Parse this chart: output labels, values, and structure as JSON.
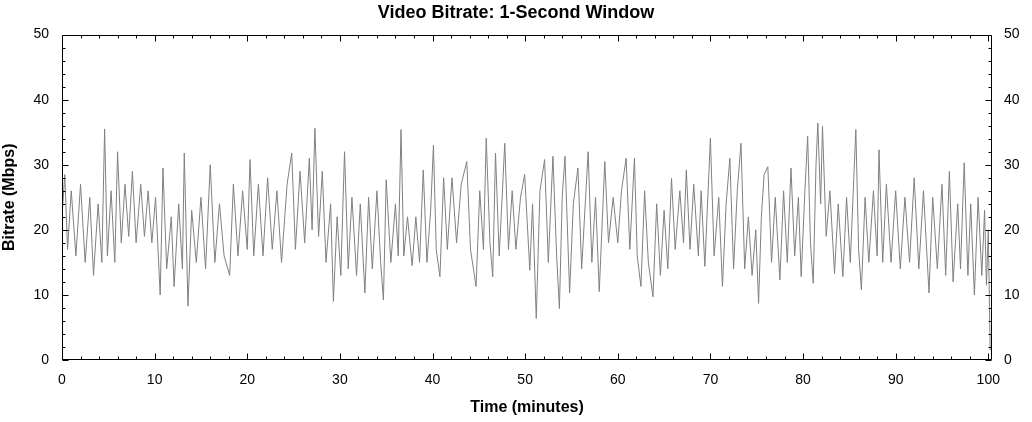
{
  "chart_data": {
    "type": "line",
    "title": "Video Bitrate: 1-Second Window",
    "xlabel": "Time (minutes)",
    "ylabel": "Bitrate (Mbps)",
    "x": [
      0,
      0.3,
      0.6,
      1,
      1.5,
      2,
      2.5,
      3,
      3.4,
      3.9,
      4.3,
      4.6,
      4.9,
      5.3,
      5.7,
      6,
      6.4,
      6.8,
      7.2,
      7.6,
      8,
      8.5,
      8.9,
      9.3,
      9.7,
      10.1,
      10.6,
      10.9,
      11.3,
      11.8,
      12.1,
      12.6,
      13,
      13.2,
      13.6,
      14,
      14.5,
      15,
      15.5,
      16,
      16.5,
      17,
      17.5,
      18.1,
      18.5,
      19,
      19.5,
      20,
      20.3,
      20.7,
      21.2,
      21.7,
      22.2,
      22.7,
      23.2,
      23.7,
      24.3,
      24.8,
      25.2,
      25.7,
      26.2,
      26.7,
      27,
      27.3,
      27.7,
      28.1,
      28.5,
      29,
      29.3,
      29.7,
      30.1,
      30.5,
      30.9,
      31.3,
      31.8,
      32.2,
      32.7,
      33.1,
      33.5,
      34,
      34.4,
      34.7,
      35,
      35.5,
      36,
      36.3,
      36.6,
      36.9,
      37.3,
      37.8,
      38.2,
      38.6,
      39,
      39.4,
      39.8,
      40.1,
      40.4,
      40.8,
      41.2,
      41.6,
      42.1,
      42.6,
      43.1,
      43.7,
      44.1,
      44.7,
      45.1,
      45.5,
      45.8,
      46.2,
      46.5,
      46.8,
      47.2,
      47.8,
      48.2,
      48.6,
      49,
      49.5,
      49.95,
      50.5,
      50.8,
      51.2,
      51.6,
      52.1,
      52.5,
      53,
      53.4,
      53.7,
      54,
      54.3,
      54.8,
      55.2,
      55.7,
      56.1,
      56.8,
      57.2,
      57.6,
      58,
      58.6,
      59,
      59.5,
      60,
      60.4,
      60.9,
      61.3,
      61.8,
      62.1,
      62.5,
      62.9,
      63.3,
      63.8,
      64.2,
      64.6,
      65,
      65.4,
      65.8,
      66.2,
      66.7,
      67.1,
      67.4,
      67.8,
      68.2,
      68.7,
      69,
      69.4,
      70,
      70.4,
      70.9,
      71.3,
      71.7,
      72.1,
      72.5,
      72.9,
      73.3,
      73.7,
      74.1,
      74.5,
      74.9,
      75.2,
      75.5,
      75.8,
      76.2,
      76.6,
      77,
      77.5,
      77.9,
      78.3,
      78.7,
      79.1,
      79.5,
      79.8,
      80.2,
      80.5,
      80.8,
      81.1,
      81.4,
      81.6,
      81.9,
      82.1,
      82.5,
      82.9,
      83.4,
      83.8,
      84.3,
      84.7,
      85.1,
      85.7,
      86,
      86.3,
      86.7,
      87.1,
      87.6,
      88,
      88.2,
      88.6,
      89,
      89.5,
      90,
      90.5,
      91,
      91.5,
      92,
      92.5,
      93,
      93.6,
      94,
      94.5,
      95,
      95.4,
      95.8,
      96.2,
      96.7,
      97,
      97.4,
      97.8,
      98.1,
      98.5,
      98.9,
      99.3,
      99.6,
      99.8,
      100,
      100.2
    ],
    "series": [
      {
        "color": "#808080",
        "values": [
          22,
          28.5,
          17,
          26,
          16,
          27,
          15,
          25,
          13,
          24,
          15,
          35.5,
          16,
          26,
          15,
          32,
          18,
          27,
          19,
          29,
          18,
          27,
          19,
          26,
          18,
          25,
          10,
          29.5,
          14,
          22,
          11.3,
          24,
          14,
          31.8,
          8.3,
          23,
          15,
          25,
          14,
          30,
          15,
          24,
          16,
          13,
          27,
          16,
          26,
          17,
          30.8,
          16,
          27,
          16,
          28,
          17,
          26,
          15,
          27,
          31.8,
          17,
          29,
          18,
          31,
          20,
          35.6,
          19,
          29,
          15,
          24,
          9,
          22,
          13,
          32,
          14,
          25,
          13,
          24,
          10.3,
          25,
          14,
          26,
          15,
          9.2,
          27.7,
          15,
          24,
          16,
          35.4,
          16,
          22,
          14.5,
          22,
          15,
          29.2,
          15,
          23,
          33,
          17,
          12.8,
          28,
          17,
          28,
          18,
          27,
          30.5,
          17,
          11.3,
          26,
          17,
          34.1,
          18,
          12.8,
          31.8,
          16,
          33.3,
          17,
          26,
          17,
          25,
          28.5,
          13.8,
          24,
          6.4,
          26,
          30.8,
          15,
          31.3,
          16,
          7.9,
          25,
          31.3,
          10.3,
          24,
          29.5,
          14,
          32,
          15,
          25,
          10.5,
          30.5,
          18,
          25,
          18,
          26,
          31,
          17,
          31,
          16,
          11.3,
          26,
          15,
          9.7,
          24,
          13,
          23,
          14,
          27.9,
          17,
          26,
          18,
          29.2,
          17,
          27,
          16,
          26,
          14.4,
          34.1,
          16,
          25,
          11.3,
          24,
          31,
          14,
          26,
          33.3,
          14,
          22,
          13,
          20,
          8.7,
          22,
          28.5,
          29.7,
          15,
          25,
          12.3,
          26,
          15,
          29.5,
          16,
          25,
          12.8,
          26,
          34.4,
          18,
          11.8,
          30,
          36.4,
          24,
          35.9,
          19,
          26,
          13.3,
          24,
          12.8,
          25,
          15,
          35.4,
          17,
          10.8,
          25,
          15,
          26,
          16,
          32.3,
          15,
          27,
          15,
          26,
          14,
          25,
          15,
          28,
          14,
          26,
          10.3,
          25,
          14,
          27,
          13,
          29,
          12,
          24,
          14,
          30.3,
          13,
          24,
          10,
          25,
          13,
          23,
          11.5,
          20,
          1.5
        ]
      }
    ],
    "xlim": [
      0,
      100.4
    ],
    "xticks": [
      0,
      {
        "value": 2,
        "label": null
      },
      {
        "value": 4,
        "label": null
      },
      {
        "value": 6,
        "label": null
      },
      {
        "value": 8,
        "label": null
      },
      10,
      {
        "value": 12,
        "label": null
      },
      {
        "value": 14,
        "label": null
      },
      {
        "value": 16,
        "label": null
      },
      {
        "value": 18,
        "label": null
      },
      20,
      {
        "value": 22,
        "label": null
      },
      {
        "value": 24,
        "label": null
      },
      {
        "value": 26,
        "label": null
      },
      {
        "value": 28,
        "label": null
      },
      30,
      {
        "value": 32,
        "label": null
      },
      {
        "value": 34,
        "label": null
      },
      {
        "value": 36,
        "label": null
      },
      {
        "value": 38,
        "label": null
      },
      40,
      {
        "value": 42,
        "label": null
      },
      {
        "value": 44,
        "label": null
      },
      {
        "value": 46,
        "label": null
      },
      {
        "value": 48,
        "label": null
      },
      50,
      {
        "value": 52,
        "label": null
      },
      {
        "value": 54,
        "label": null
      },
      {
        "value": 56,
        "label": null
      },
      {
        "value": 58,
        "label": null
      },
      60,
      {
        "value": 62,
        "label": null
      },
      {
        "value": 64,
        "label": null
      },
      {
        "value": 66,
        "label": null
      },
      {
        "value": 68,
        "label": null
      },
      70,
      {
        "value": 72,
        "label": null
      },
      {
        "value": 74,
        "label": null
      },
      {
        "value": 76,
        "label": null
      },
      {
        "value": 78,
        "label": null
      },
      80,
      {
        "value": 82,
        "label": null
      },
      {
        "value": 84,
        "label": null
      },
      {
        "value": 86,
        "label": null
      },
      {
        "value": 88,
        "label": null
      },
      90,
      {
        "value": 92,
        "label": null
      },
      {
        "value": 94,
        "label": null
      },
      {
        "value": 96,
        "label": null
      },
      {
        "value": 98,
        "label": null
      },
      100
    ],
    "ylim": [
      0,
      50
    ],
    "yticks": [
      0,
      {
        "value": 2,
        "label": null
      },
      {
        "value": 4,
        "label": null
      },
      {
        "value": 6,
        "label": null
      },
      {
        "value": 8,
        "label": null
      },
      10,
      {
        "value": 12,
        "label": null
      },
      {
        "value": 14,
        "label": null
      },
      {
        "value": 16,
        "label": null
      },
      {
        "value": 18,
        "label": null
      },
      20,
      {
        "value": 22,
        "label": null
      },
      {
        "value": 24,
        "label": null
      },
      {
        "value": 26,
        "label": null
      },
      {
        "value": 28,
        "label": null
      },
      30,
      {
        "value": 32,
        "label": null
      },
      {
        "value": 34,
        "label": null
      },
      {
        "value": 36,
        "label": null
      },
      {
        "value": 38,
        "label": null
      },
      40,
      {
        "value": 42,
        "label": null
      },
      {
        "value": 44,
        "label": null
      },
      {
        "value": 46,
        "label": null
      },
      {
        "value": 48,
        "label": null
      },
      50
    ],
    "y2lim": [
      0,
      50
    ],
    "y2ticks": [
      0,
      {
        "value": 2,
        "label": null
      },
      {
        "value": 4,
        "label": null
      },
      {
        "value": 6,
        "label": null
      },
      {
        "value": 8,
        "label": null
      },
      10,
      {
        "value": 12,
        "label": null
      },
      {
        "value": 14,
        "label": null
      },
      {
        "value": 16,
        "label": null
      },
      {
        "value": 18,
        "label": null
      },
      20,
      {
        "value": 22,
        "label": null
      },
      {
        "value": 24,
        "label": null
      },
      {
        "value": 26,
        "label": null
      },
      {
        "value": 28,
        "label": null
      },
      30,
      {
        "value": 32,
        "label": null
      },
      {
        "value": 34,
        "label": null
      },
      {
        "value": 36,
        "label": null
      },
      {
        "value": 38,
        "label": null
      },
      40,
      {
        "value": 42,
        "label": null
      },
      {
        "value": 44,
        "label": null
      },
      {
        "value": 46,
        "label": null
      },
      {
        "value": 48,
        "label": null
      },
      50
    ]
  }
}
